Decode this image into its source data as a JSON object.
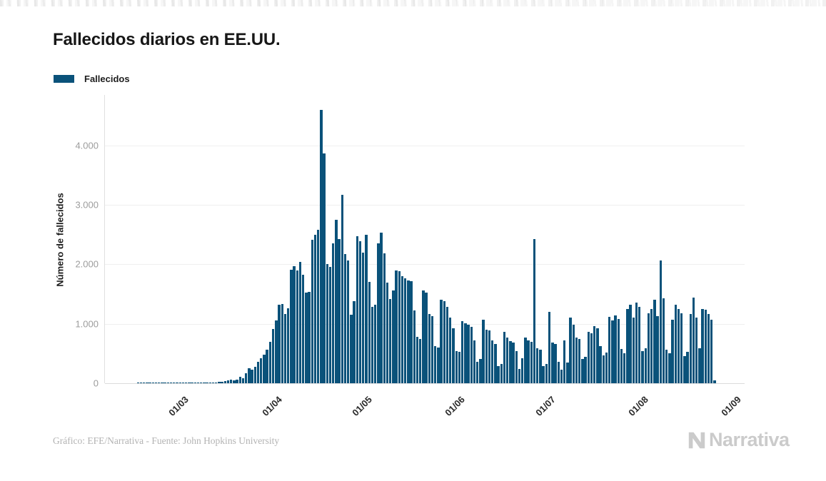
{
  "legend": {
    "label": "Fallecidos",
    "swatch_color": "#0a527a"
  },
  "footer": {
    "credit": "Gráfico: EFE/Narrativa - Fuente: John Hopkins University",
    "brand": "Narrativa"
  },
  "chart_data": {
    "type": "bar",
    "title": "Fallecidos diarios en EE.UU.",
    "xlabel": "",
    "ylabel": "Número de fallecidos",
    "ylim": [
      0,
      4848
    ],
    "grid": true,
    "legend_position": "top-left",
    "y_ticks": [
      {
        "value": 0,
        "label": "0"
      },
      {
        "value": 1000,
        "label": "1.000"
      },
      {
        "value": 2000,
        "label": "2.000"
      },
      {
        "value": 3000,
        "label": "3.000"
      },
      {
        "value": 4000,
        "label": "4.000"
      }
    ],
    "x_ticks": [
      {
        "index": 15,
        "label": "01/03"
      },
      {
        "index": 46,
        "label": "01/04"
      },
      {
        "index": 76,
        "label": "01/05"
      },
      {
        "index": 107,
        "label": "01/06"
      },
      {
        "index": 137,
        "label": "01/07"
      },
      {
        "index": 168,
        "label": "01/08"
      },
      {
        "index": 199,
        "label": "01/09"
      }
    ],
    "series": [
      {
        "name": "Fallecidos",
        "color": "#0a527a",
        "values": [
          0,
          0,
          1,
          1,
          1,
          1,
          2,
          1,
          1,
          2,
          2,
          3,
          3,
          4,
          5,
          2,
          5,
          3,
          4,
          3,
          5,
          4,
          6,
          7,
          8,
          7,
          9,
          11,
          14,
          19,
          25,
          41,
          47,
          58,
          52,
          66,
          113,
          86,
          168,
          255,
          225,
          276,
          360,
          420,
          480,
          560,
          700,
          910,
          1060,
          1320,
          1330,
          1170,
          1260,
          1910,
          1970,
          1900,
          2040,
          1830,
          1530,
          1540,
          2410,
          2500,
          2580,
          4600,
          3870,
          2000,
          1960,
          2350,
          2750,
          2430,
          3170,
          2170,
          2060,
          1150,
          1380,
          2470,
          2390,
          2200,
          2500,
          1700,
          1290,
          1320,
          2350,
          2530,
          2180,
          1690,
          1420,
          1560,
          1900,
          1880,
          1800,
          1760,
          1730,
          1720,
          1220,
          780,
          750,
          1560,
          1520,
          1160,
          1130,
          620,
          600,
          1400,
          1380,
          1280,
          1100,
          920,
          540,
          530,
          1040,
          1010,
          980,
          950,
          720,
          360,
          410,
          1070,
          900,
          890,
          720,
          660,
          290,
          320,
          860,
          770,
          710,
          680,
          540,
          240,
          420,
          770,
          720,
          700,
          2420,
          590,
          560,
          290,
          320,
          1200,
          680,
          660,
          360,
          230,
          720,
          350,
          1100,
          980,
          770,
          740,
          410,
          440,
          860,
          840,
          960,
          930,
          630,
          470,
          520,
          1120,
          1060,
          1140,
          1080,
          580,
          500,
          1250,
          1320,
          1110,
          1360,
          1280,
          540,
          590,
          1180,
          1250,
          1400,
          1130,
          2060,
          1430,
          560,
          510,
          1070,
          1320,
          1250,
          1180,
          460,
          530,
          1160,
          1440,
          1100,
          590,
          1250,
          1240,
          1170,
          1070,
          50
        ]
      }
    ]
  }
}
